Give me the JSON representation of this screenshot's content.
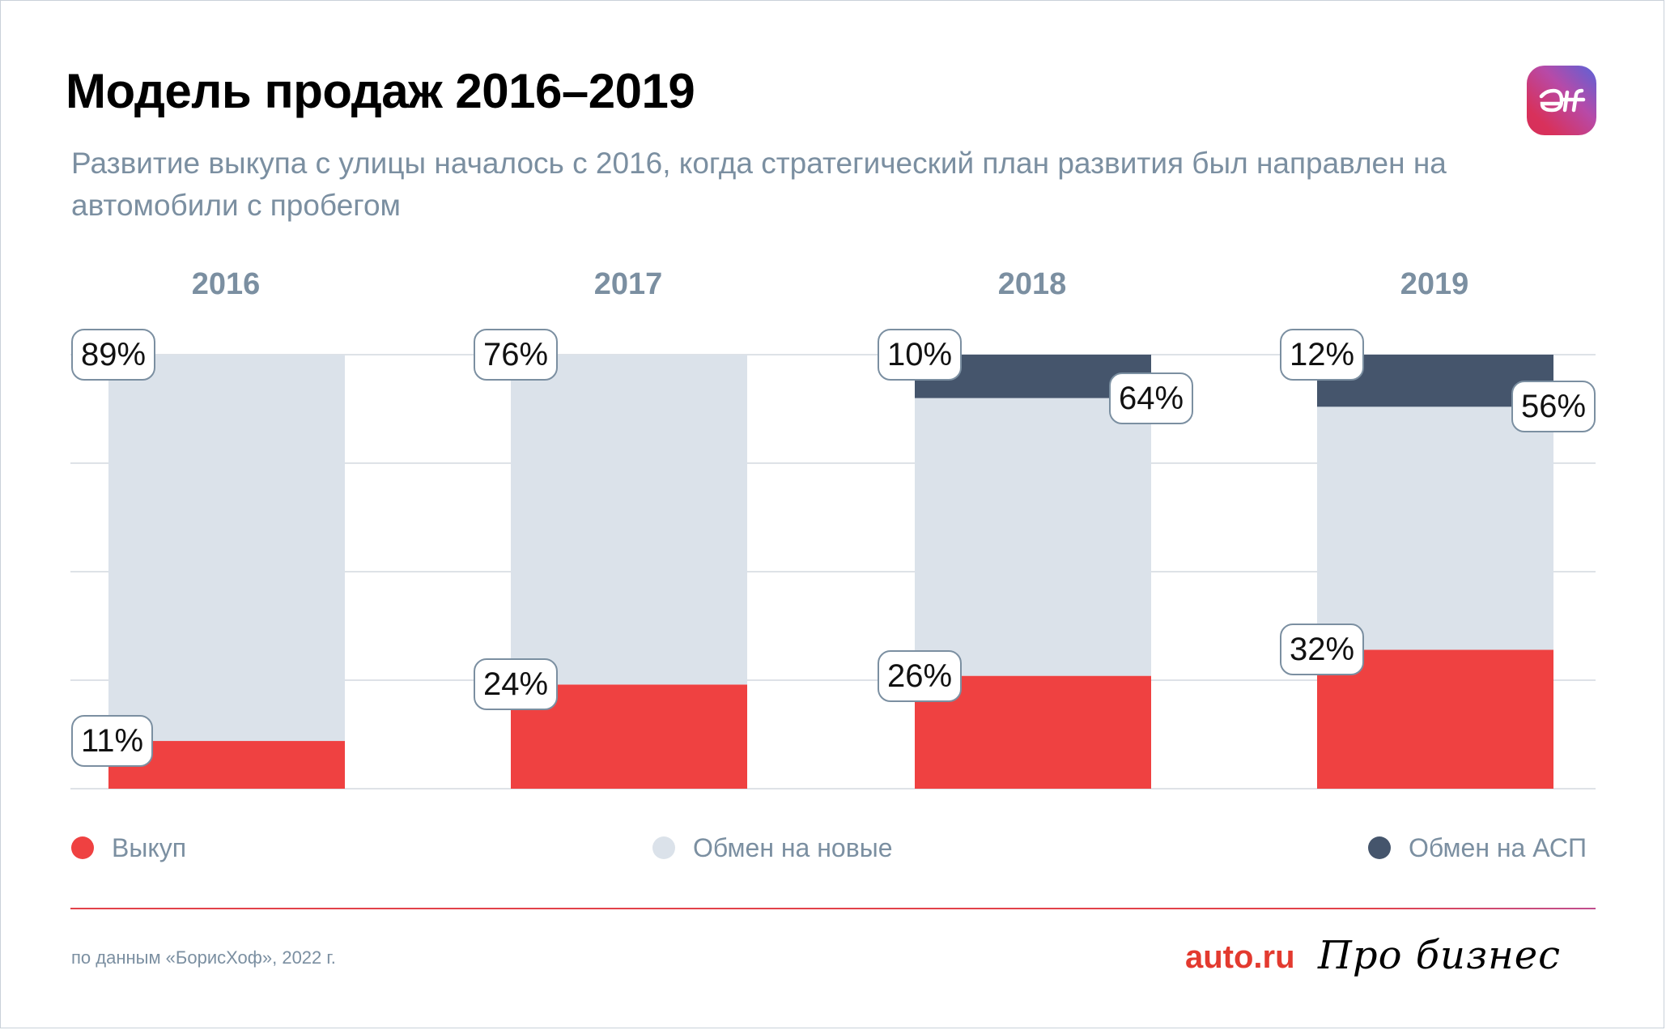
{
  "header": {
    "title": "Модель продаж 2016–2019",
    "subtitle": "Развитие выкупа с улицы началось с 2016, когда стратегический план развития был направлен на автомобили с пробегом",
    "logo": "aif-logo-icon"
  },
  "colors": {
    "buyout": "#ef4141",
    "exchange_new": "#dbe2ea",
    "exchange_asp": "#45556c",
    "accent_text": "#7b8fa1",
    "grid": "#d3d9df"
  },
  "chart_data": {
    "type": "bar",
    "stacked": true,
    "title": "Модель продаж 2016–2019",
    "subtitle": "Развитие выкупа с улицы началось с 2016, когда стратегический план развития был направлен на автомобили с пробегом",
    "categories": [
      "2016",
      "2017",
      "2018",
      "2019"
    ],
    "series": [
      {
        "name": "Выкуп",
        "color": "#ef4141",
        "values": [
          11,
          24,
          26,
          32
        ]
      },
      {
        "name": "Обмен на новые",
        "color": "#dbe2ea",
        "values": [
          89,
          76,
          64,
          56
        ]
      },
      {
        "name": "Обмен на АСП",
        "color": "#45556c",
        "values": [
          0,
          0,
          10,
          12
        ]
      }
    ],
    "data_labels": [
      {
        "category": "2016",
        "series": "Выкуп",
        "text": "11%"
      },
      {
        "category": "2016",
        "series": "Обмен на новые",
        "text": "89%"
      },
      {
        "category": "2017",
        "series": "Выкуп",
        "text": "24%"
      },
      {
        "category": "2017",
        "series": "Обмен на новые",
        "text": "76%"
      },
      {
        "category": "2018",
        "series": "Выкуп",
        "text": "26%"
      },
      {
        "category": "2018",
        "series": "Обмен на новые",
        "text": "64%"
      },
      {
        "category": "2018",
        "series": "Обмен на АСП",
        "text": "10%"
      },
      {
        "category": "2019",
        "series": "Выкуп",
        "text": "32%"
      },
      {
        "category": "2019",
        "series": "Обмен на новые",
        "text": "56%"
      },
      {
        "category": "2019",
        "series": "Обмен на АСП",
        "text": "12%"
      }
    ],
    "xlabel": "",
    "ylabel": "",
    "ylim": [
      0,
      100
    ],
    "grid": true,
    "gridlines": [
      0,
      25,
      50,
      75,
      100
    ],
    "legend": "bottom"
  },
  "legend": [
    {
      "label": "Выкуп"
    },
    {
      "label": "Обмен на новые"
    },
    {
      "label": "Обмен на АСП"
    }
  ],
  "footer": {
    "source": "по данным «БорисХоф», 2022 г.",
    "brand_auto": "auto.ru",
    "brand_pro": "Про бизнес"
  }
}
